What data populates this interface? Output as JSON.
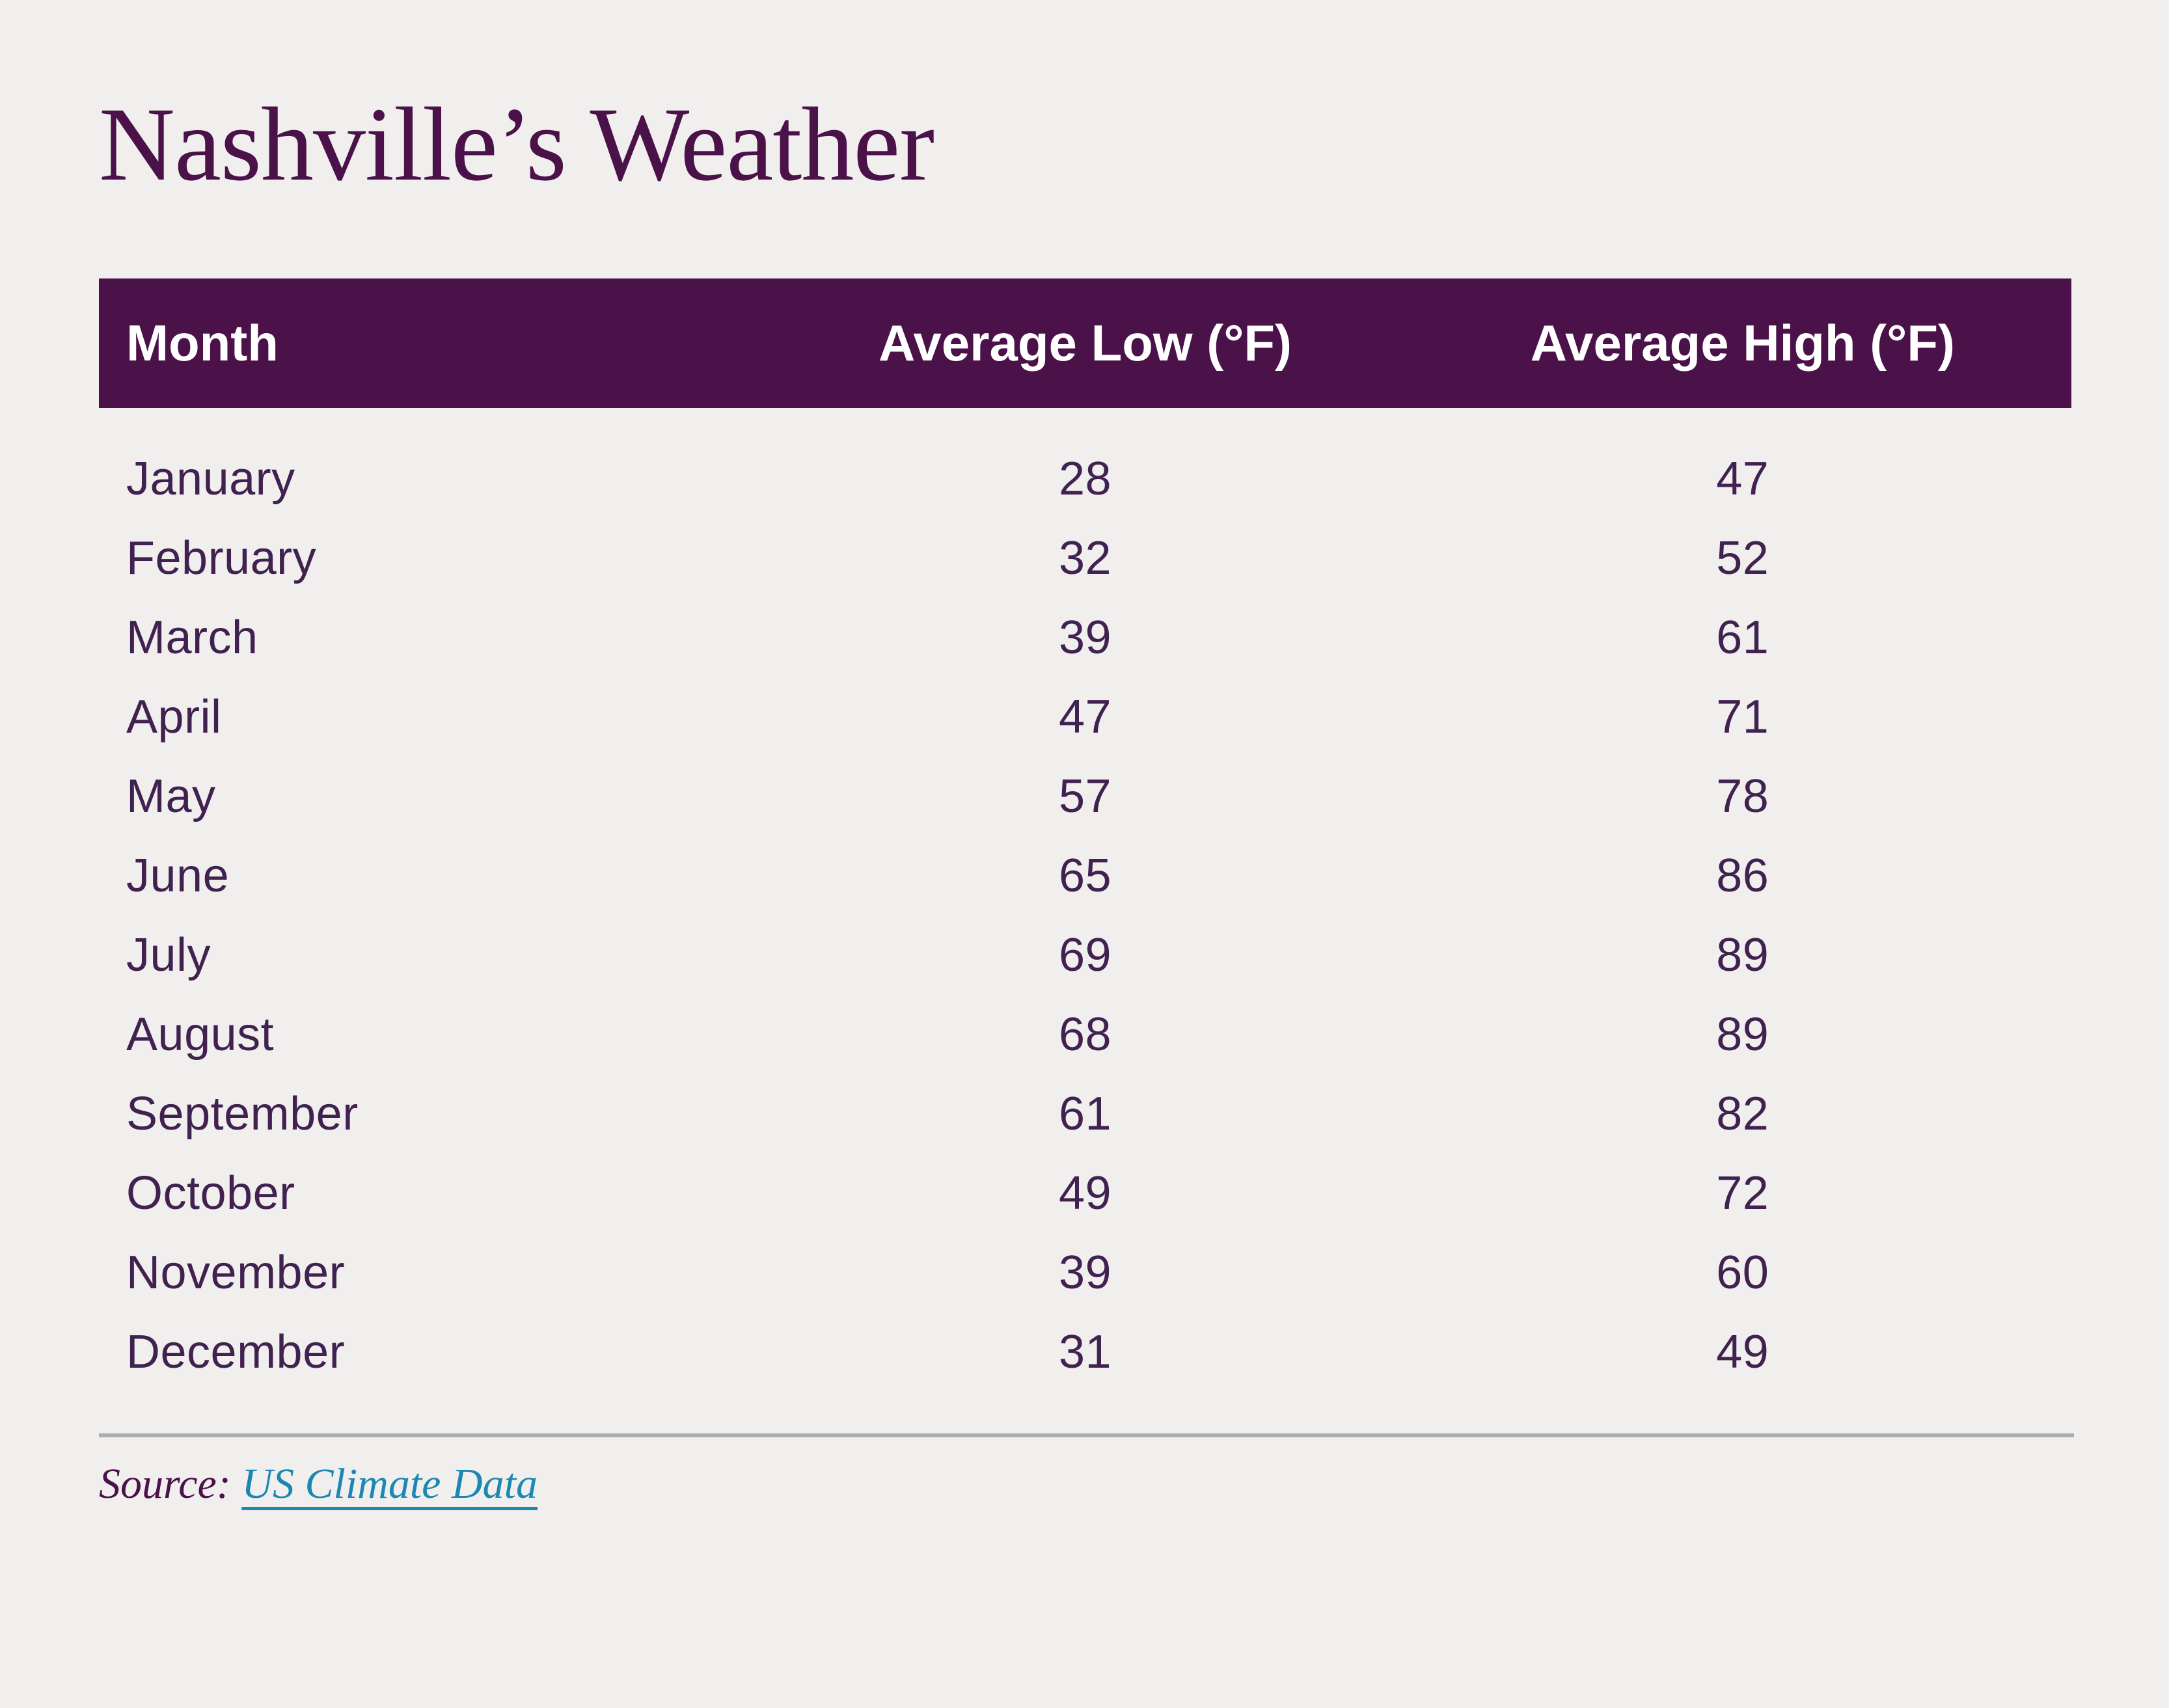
{
  "page": {
    "background": "#F0EFEE",
    "accent_color": "#4B1149",
    "body_text_color": "#402150",
    "divider_color": "#ACACAC",
    "link_color": "#1C87B2",
    "header_text_color": "#FFFFFF"
  },
  "title": "Nashville’s Weather",
  "table": {
    "header": [
      "Month",
      "Average Low (°F)",
      "Average High (°F)"
    ]
  },
  "chart_data": {
    "type": "table",
    "title": "Nashville’s Weather",
    "columns": [
      "Month",
      "Average Low (°F)",
      "Average High (°F)"
    ],
    "categories": [
      "January",
      "February",
      "March",
      "April",
      "May",
      "June",
      "July",
      "August",
      "September",
      "October",
      "November",
      "December"
    ],
    "series": [
      {
        "name": "Average Low (°F)",
        "values": [
          28,
          32,
          39,
          47,
          57,
          65,
          69,
          68,
          61,
          49,
          39,
          31
        ]
      },
      {
        "name": "Average High (°F)",
        "values": [
          47,
          52,
          61,
          71,
          78,
          86,
          89,
          89,
          82,
          72,
          60,
          49
        ]
      }
    ],
    "source": "Source: US Climate Data"
  },
  "source": {
    "label": "Source:",
    "link_text": "US Climate Data"
  }
}
